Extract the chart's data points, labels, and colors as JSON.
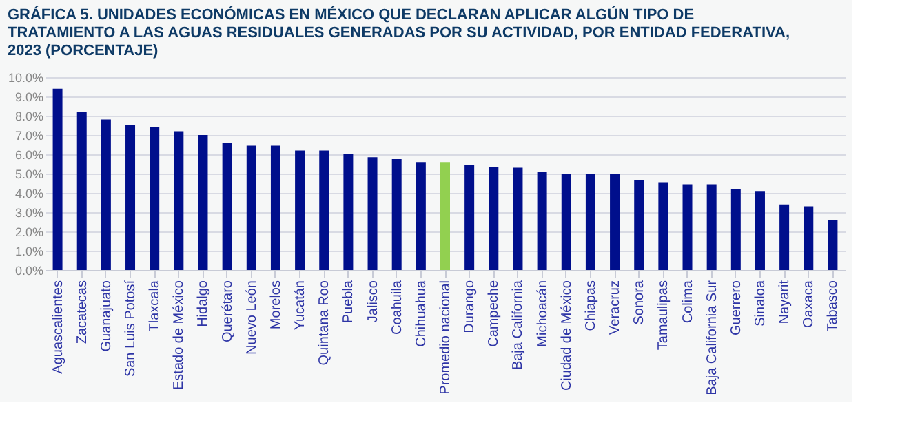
{
  "chart_data": {
    "type": "bar",
    "title": [
      "GRÁFICA 5. UNIDADES ECONÓMICAS EN MÉXICO QUE DECLARAN APLICAR ALGÚN TIPO DE",
      "TRATAMIENTO A LAS AGUAS RESIDUALES GENERADAS POR SU ACTIVIDAD, POR ENTIDAD FEDERATIVA,",
      "2023 (PORCENTAJE)"
    ],
    "categories": [
      "Aguascalientes",
      "Zacatecas",
      "Guanajuato",
      "San Luis Potosí",
      "Tlaxcala",
      "Estado de México",
      "Hidalgo",
      "Querétaro",
      "Nuevo León",
      "Morelos",
      "Yucatán",
      "Quintana Roo",
      "Puebla",
      "Jalisco",
      "Coahuila",
      "Chihuahua",
      "Promedio nacional",
      "Durango",
      "Campeche",
      "Baja California",
      "Michoacán",
      "Ciudad de México",
      "Chiapas",
      "Veracruz",
      "Sonora",
      "Tamaulipas",
      "Colima",
      "Baja California Sur",
      "Guerrero",
      "Sinaloa",
      "Nayarit",
      "Oaxaca",
      "Tabasco"
    ],
    "values": [
      9.4,
      8.2,
      7.8,
      7.5,
      7.4,
      7.2,
      7.0,
      6.6,
      6.45,
      6.45,
      6.2,
      6.2,
      6.0,
      5.85,
      5.75,
      5.6,
      5.6,
      5.45,
      5.35,
      5.3,
      5.1,
      5.0,
      5.0,
      5.0,
      4.65,
      4.55,
      4.45,
      4.45,
      4.2,
      4.1,
      3.4,
      3.3,
      2.6
    ],
    "colors": [
      "#000f8c",
      "#000f8c",
      "#000f8c",
      "#000f8c",
      "#000f8c",
      "#000f8c",
      "#000f8c",
      "#000f8c",
      "#000f8c",
      "#000f8c",
      "#000f8c",
      "#000f8c",
      "#000f8c",
      "#000f8c",
      "#000f8c",
      "#000f8c",
      "#92d050",
      "#000f8c",
      "#000f8c",
      "#000f8c",
      "#000f8c",
      "#000f8c",
      "#000f8c",
      "#000f8c",
      "#000f8c",
      "#000f8c",
      "#000f8c",
      "#000f8c",
      "#000f8c",
      "#000f8c",
      "#000f8c",
      "#000f8c",
      "#000f8c"
    ],
    "ylim": [
      0,
      10
    ],
    "yticks": [
      {
        "value": 0,
        "label": "0.0%"
      },
      {
        "value": 1,
        "label": "1.0%"
      },
      {
        "value": 2,
        "label": "2.0%"
      },
      {
        "value": 3,
        "label": "3.0%"
      },
      {
        "value": 4,
        "label": "4.0%"
      },
      {
        "value": 5,
        "label": "5.0%"
      },
      {
        "value": 6,
        "label": "6.0%"
      },
      {
        "value": 7,
        "label": "7.0%"
      },
      {
        "value": 8,
        "label": "8.0%"
      },
      {
        "value": 9,
        "label": "9.0%"
      },
      {
        "value": 10,
        "label": "10.0%"
      }
    ],
    "grid": "y"
  }
}
